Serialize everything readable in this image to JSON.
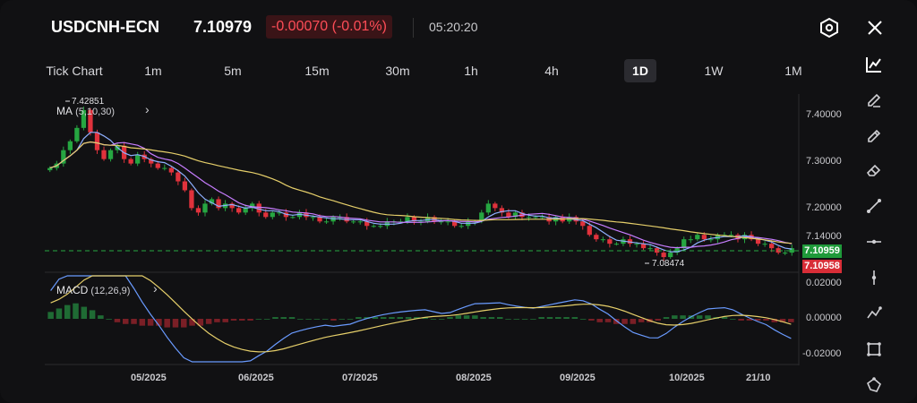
{
  "header": {
    "symbol": "USDCNH-ECN",
    "price": "7.10979",
    "change": "-0.00070 (-0.01%)",
    "time": "05:20:20",
    "settings_icon": "hexagon-settings-icon",
    "close_icon": "close-icon"
  },
  "tabs": [
    {
      "label": "Tick Chart",
      "active": false
    },
    {
      "label": "1m",
      "active": false
    },
    {
      "label": "5m",
      "active": false
    },
    {
      "label": "15m",
      "active": false
    },
    {
      "label": "30m",
      "active": false
    },
    {
      "label": "1h",
      "active": false
    },
    {
      "label": "4h",
      "active": false
    },
    {
      "label": "1D",
      "active": true
    },
    {
      "label": "1W",
      "active": false
    },
    {
      "label": "1M",
      "active": false
    }
  ],
  "indicators": {
    "ma": {
      "name": "MA",
      "params": "(5,10,30)"
    },
    "macd": {
      "name": "MACD",
      "params": "(12,26,9)"
    }
  },
  "price_axis": [
    "7.40000",
    "7.30000",
    "7.20000",
    "7.14000"
  ],
  "macd_axis": [
    "0.02000",
    "0.00000",
    "-0.02000"
  ],
  "price_tags": {
    "ask": "7.10959",
    "bid": "7.10958"
  },
  "annotations": {
    "high": "7.42851",
    "low": "7.08474"
  },
  "date_axis": [
    "05/2025",
    "06/2025",
    "07/2025",
    "08/2025",
    "09/2025",
    "10/2025",
    "21/10"
  ],
  "colors": {
    "up": "#26a641",
    "down": "#e0323c",
    "ma5": "#8fb0ff",
    "ma10": "#c77dff",
    "ma30": "#e6cf6a",
    "bg": "#111113"
  },
  "toolbar": [
    "indicator-icon",
    "pen-icon",
    "brush-icon",
    "eraser-icon",
    "trend-line-icon",
    "horizontal-line-icon",
    "vertical-line-icon",
    "polyline-icon",
    "rectangle-icon",
    "more-shapes-icon"
  ],
  "chart_data": {
    "type": "candlestick",
    "price_range": [
      7.06,
      7.45
    ],
    "last_price": 7.10959,
    "high_point": {
      "value": 7.42851,
      "date": "04/2025"
    },
    "low_point": {
      "value": 7.08474,
      "date": "09/2025"
    },
    "close_series": [
      7.29,
      7.3,
      7.33,
      7.35,
      7.38,
      7.42,
      7.37,
      7.33,
      7.31,
      7.33,
      7.34,
      7.31,
      7.3,
      7.32,
      7.31,
      7.3,
      7.29,
      7.29,
      7.28,
      7.26,
      7.24,
      7.2,
      7.19,
      7.21,
      7.22,
      7.2,
      7.21,
      7.2,
      7.19,
      7.2,
      7.21,
      7.19,
      7.18,
      7.19,
      7.19,
      7.18,
      7.18,
      7.19,
      7.18,
      7.18,
      7.17,
      7.17,
      7.18,
      7.18,
      7.17,
      7.17,
      7.17,
      7.16,
      7.16,
      7.16,
      7.17,
      7.17,
      7.17,
      7.18,
      7.17,
      7.17,
      7.18,
      7.17,
      7.17,
      7.17,
      7.16,
      7.16,
      7.17,
      7.17,
      7.19,
      7.21,
      7.2,
      7.19,
      7.18,
      7.19,
      7.18,
      7.18,
      7.18,
      7.18,
      7.17,
      7.18,
      7.17,
      7.18,
      7.17,
      7.16,
      7.14,
      7.13,
      7.13,
      7.12,
      7.12,
      7.13,
      7.12,
      7.12,
      7.11,
      7.11,
      7.1,
      7.09,
      7.1,
      7.11,
      7.13,
      7.13,
      7.14,
      7.13,
      7.13,
      7.14,
      7.14,
      7.14,
      7.13,
      7.14,
      7.13,
      7.12,
      7.12,
      7.11,
      7.1,
      7.1,
      7.11
    ],
    "macd_range": [
      -0.025,
      0.025
    ],
    "macd_hist": [
      0.004,
      0.006,
      0.008,
      0.009,
      0.007,
      0.005,
      0.002,
      0.0,
      -0.002,
      -0.003,
      -0.003,
      -0.004,
      -0.004,
      -0.004,
      -0.005,
      -0.005,
      -0.005,
      -0.004,
      -0.004,
      -0.003,
      -0.002,
      -0.002,
      -0.001,
      -0.001,
      -0.001,
      0.0,
      0.0,
      0.001,
      0.001,
      0.001,
      0.0,
      0.0,
      0.0,
      0.0,
      -0.001,
      0.0,
      0.0,
      0.001,
      0.001,
      0.001,
      0.001,
      0.001,
      0.001,
      0.001,
      0.001,
      0.001,
      0.0,
      0.0,
      0.001,
      0.002,
      0.002,
      0.002,
      0.001,
      0.001,
      0.001,
      0.0,
      0.0,
      0.0,
      0.0,
      0.001,
      0.001,
      0.001,
      0.001,
      0.001,
      0.0,
      -0.001,
      -0.002,
      -0.002,
      -0.003,
      -0.003,
      -0.003,
      -0.002,
      -0.002,
      -0.001,
      0.001,
      0.002,
      0.002,
      0.002,
      0.002,
      0.002,
      0.001,
      0.001,
      0.0,
      -0.001,
      -0.001,
      -0.001,
      -0.001,
      -0.002,
      -0.002,
      -0.002
    ],
    "macd_line_desc": "blue MACD and yellow signal lines oscillating around zero"
  }
}
